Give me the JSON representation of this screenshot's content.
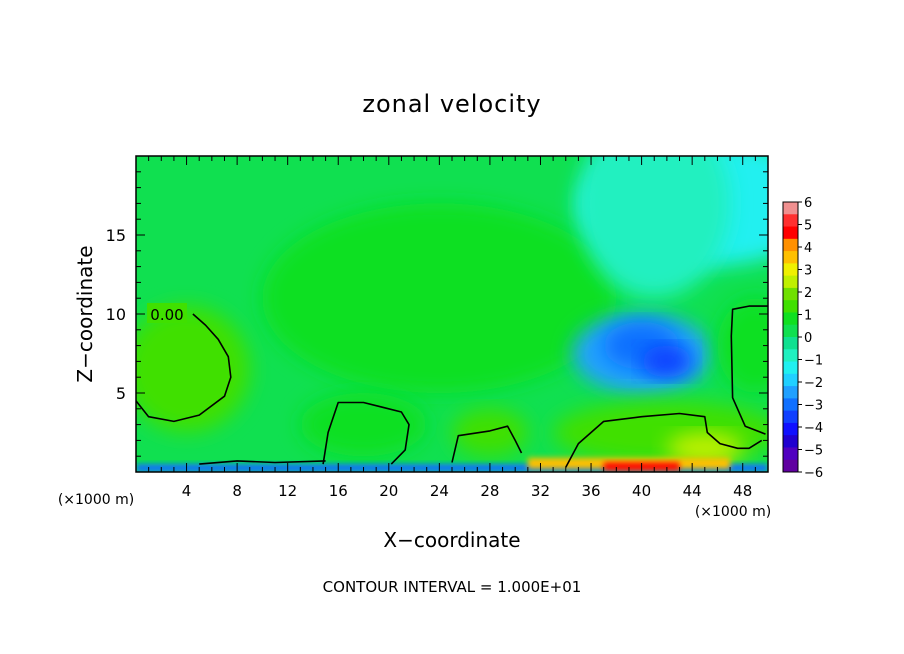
{
  "chart_data": {
    "type": "heatmap",
    "title": "zonal velocity",
    "xlabel": "X−coordinate",
    "ylabel": "Z−coordinate",
    "x_unit": "(×1000 m)",
    "x_unit_right": "(×1000 m)",
    "footer": "CONTOUR INTERVAL = 1.000E+01",
    "xlim": [
      0,
      50
    ],
    "ylim": [
      0,
      20
    ],
    "x_ticks": [
      {
        "value": 4,
        "label": "4"
      },
      {
        "value": 8,
        "label": "8"
      },
      {
        "value": 12,
        "label": "12"
      },
      {
        "value": 16,
        "label": "16"
      },
      {
        "value": 20,
        "label": "20"
      },
      {
        "value": 24,
        "label": "24"
      },
      {
        "value": 28,
        "label": "28"
      },
      {
        "value": 32,
        "label": "32"
      },
      {
        "value": 36,
        "label": "36"
      },
      {
        "value": 40,
        "label": "40"
      },
      {
        "value": 44,
        "label": "44"
      },
      {
        "value": 48,
        "label": "48"
      }
    ],
    "y_ticks": [
      {
        "value": 5,
        "label": "5"
      },
      {
        "value": 10,
        "label": "10"
      },
      {
        "value": 15,
        "label": "15"
      }
    ],
    "contour_label": "0.00",
    "colorbar": {
      "min": -6,
      "max": 6,
      "tick_labels": [
        "6",
        "5",
        "4",
        "3",
        "2",
        "1",
        "0",
        "−1",
        "−2",
        "−3",
        "−4",
        "−5",
        "−6"
      ],
      "colors": [
        "#f09090",
        "#ff3030",
        "#ff0000",
        "#ff9000",
        "#ffc000",
        "#f0f000",
        "#c0f000",
        "#70e000",
        "#40e000",
        "#10e020",
        "#10e050",
        "#10e090",
        "#20f0c0",
        "#20f0f0",
        "#20d0ff",
        "#20a0ff",
        "#1070ff",
        "#1040ff",
        "#1010ff",
        "#2000d0",
        "#5000c0",
        "#6000a0"
      ]
    },
    "regions": [
      {
        "kind": "bg",
        "value": 0.3
      },
      {
        "kind": "ellipse",
        "cx": 24,
        "cy": 11,
        "rx": 14,
        "ry": 6,
        "value": 0.7
      },
      {
        "kind": "ellipse",
        "cx": 4,
        "cy": 6.5,
        "rx": 5,
        "ry": 4,
        "value": 1.2
      },
      {
        "kind": "ellipse",
        "cx": 45,
        "cy": 17,
        "rx": 10,
        "ry": 4,
        "value": -1.3
      },
      {
        "kind": "ellipse",
        "cx": 41,
        "cy": 17,
        "rx": 6,
        "ry": 6,
        "value": -1.0
      },
      {
        "kind": "ellipse",
        "cx": 40,
        "cy": 7.5,
        "rx": 5.5,
        "ry": 2.5,
        "value": -2.3
      },
      {
        "kind": "ellipse",
        "cx": 40,
        "cy": 8,
        "rx": 3,
        "ry": 1.5,
        "value": -3.2
      },
      {
        "kind": "ellipse",
        "cx": 42,
        "cy": 7,
        "rx": 2,
        "ry": 1,
        "value": -3.4
      },
      {
        "kind": "ellipse",
        "cx": 49,
        "cy": 8,
        "rx": 3,
        "ry": 3,
        "value": 1.0
      },
      {
        "kind": "ellipse",
        "cx": 42,
        "cy": 2.5,
        "rx": 9,
        "ry": 2,
        "value": 1.4
      },
      {
        "kind": "ellipse",
        "cx": 45,
        "cy": 1.5,
        "rx": 3,
        "ry": 1,
        "value": 2.2
      },
      {
        "kind": "ellipse",
        "cx": 18,
        "cy": 3,
        "rx": 5,
        "ry": 2,
        "value": 1.0
      },
      {
        "kind": "ellipse",
        "cx": 28,
        "cy": 2.5,
        "rx": 3,
        "ry": 1.5,
        "value": 1.1
      },
      {
        "kind": "band",
        "z0": 0,
        "z1": 0.5,
        "x0": 0,
        "x1": 50,
        "value": -3.0
      },
      {
        "kind": "band",
        "z0": 0.2,
        "z1": 0.9,
        "x0": 31,
        "x1": 47,
        "value": 3.8
      },
      {
        "kind": "band",
        "z0": 0.1,
        "z1": 0.6,
        "x0": 37,
        "x1": 43,
        "value": 4.6
      }
    ],
    "contours": [
      [
        [
          0,
          4.5
        ],
        [
          1,
          3.5
        ],
        [
          3,
          3.2
        ],
        [
          5,
          3.6
        ],
        [
          7,
          4.8
        ],
        [
          7.5,
          6
        ],
        [
          7.3,
          7.3
        ],
        [
          6.5,
          8.4
        ],
        [
          5.5,
          9.3
        ],
        [
          4.5,
          10
        ]
      ],
      [
        [
          14.8,
          0.5
        ],
        [
          15.2,
          2.5
        ],
        [
          16,
          4.4
        ],
        [
          18,
          4.4
        ],
        [
          21,
          3.8
        ],
        [
          21.6,
          3.0
        ],
        [
          21.3,
          1.4
        ],
        [
          20.2,
          0.5
        ]
      ],
      [
        [
          25,
          0.6
        ],
        [
          25.5,
          2.3
        ],
        [
          28,
          2.6
        ],
        [
          29.4,
          2.9
        ],
        [
          30,
          2
        ],
        [
          30.5,
          1.2
        ]
      ],
      [
        [
          34,
          0.3
        ],
        [
          35,
          1.8
        ],
        [
          37,
          3.2
        ],
        [
          40,
          3.5
        ],
        [
          43,
          3.7
        ],
        [
          45,
          3.5
        ],
        [
          45.2,
          2.5
        ],
        [
          46.2,
          1.8
        ],
        [
          47.6,
          1.5
        ],
        [
          48.5,
          1.5
        ],
        [
          49.5,
          2
        ]
      ],
      [
        [
          49.8,
          2.4
        ],
        [
          48.2,
          2.9
        ],
        [
          47.2,
          4.7
        ],
        [
          47.1,
          8.6
        ],
        [
          47.2,
          10.3
        ],
        [
          48.5,
          10.5
        ],
        [
          50,
          10.5
        ]
      ],
      [
        [
          5,
          0.5
        ],
        [
          8,
          0.7
        ],
        [
          11,
          0.6
        ],
        [
          15,
          0.7
        ]
      ]
    ]
  }
}
